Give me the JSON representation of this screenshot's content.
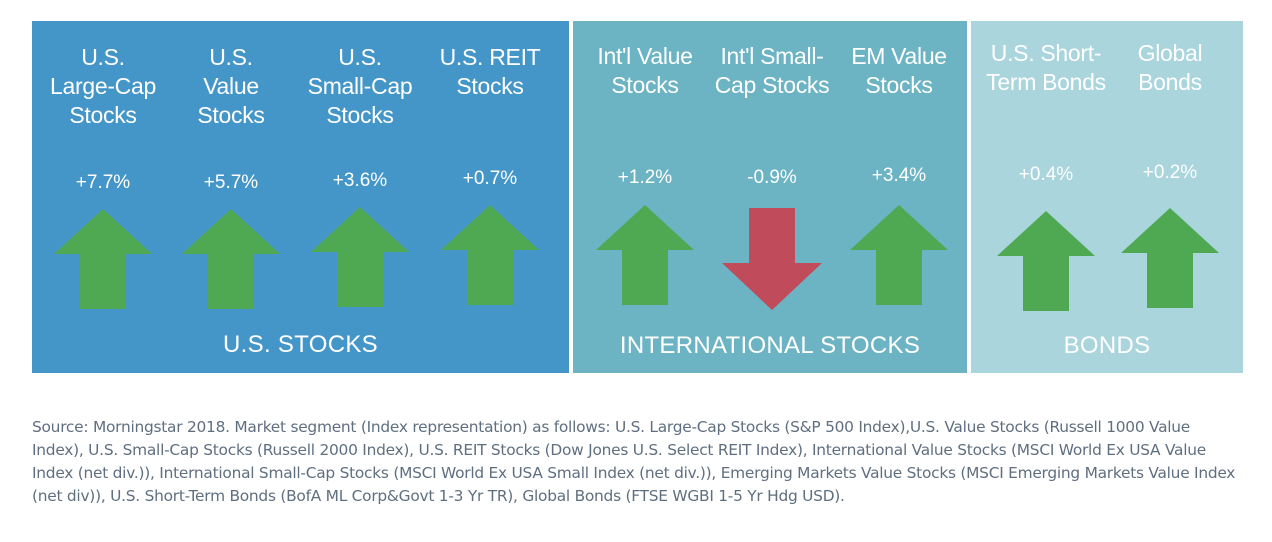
{
  "chart_data": {
    "type": "bar",
    "groups": [
      {
        "name": "U.S. STOCKS",
        "color": "#4596c8"
      },
      {
        "name": "INTERNATIONAL STOCKS",
        "color": "#6cb4c4"
      },
      {
        "name": "BONDS",
        "color": "#aad5dd"
      }
    ],
    "categories": [
      {
        "label": "U.S. Large-Cap Stocks",
        "lines": [
          "U.S.",
          "Large-Cap",
          "Stocks"
        ],
        "value_label": "+7.7%",
        "value": 7.7,
        "group": 0
      },
      {
        "label": "U.S. Value Stocks",
        "lines": [
          "U.S.",
          "Value",
          "Stocks"
        ],
        "value_label": "+5.7%",
        "value": 5.7,
        "group": 0
      },
      {
        "label": "U.S. Small-Cap Stocks",
        "lines": [
          "U.S.",
          "Small-Cap",
          "Stocks"
        ],
        "value_label": "+3.6%",
        "value": 3.6,
        "group": 0
      },
      {
        "label": "U.S. REIT Stocks",
        "lines": [
          "U.S. REIT",
          "Stocks"
        ],
        "value_label": "+0.7%",
        "value": 0.7,
        "group": 0
      },
      {
        "label": "Int'l Value Stocks",
        "lines": [
          "Int'l Value",
          "Stocks"
        ],
        "value_label": "+1.2%",
        "value": 1.2,
        "group": 1
      },
      {
        "label": "Int'l Small-Cap Stocks",
        "lines": [
          "Int'l Small-",
          "Cap Stocks"
        ],
        "value_label": "-0.9%",
        "value": -0.9,
        "group": 1
      },
      {
        "label": "EM Value Stocks",
        "lines": [
          "EM Value",
          "Stocks"
        ],
        "value_label": "+3.4%",
        "value": 3.4,
        "group": 1
      },
      {
        "label": "U.S. Short-Term Bonds",
        "lines": [
          "U.S. Short-",
          "Term Bonds"
        ],
        "value_label": "+0.4%",
        "value": 0.4,
        "group": 2
      },
      {
        "label": "Global Bonds",
        "lines": [
          "Global",
          "Bonds"
        ],
        "value_label": "+0.2%",
        "value": 0.2,
        "group": 2
      }
    ],
    "colors": {
      "up": "#4fa952",
      "down": "#bf4b5b"
    }
  },
  "source_note": "Source: Morningstar 2018. Market segment (Index representation) as follows: U.S. Large-Cap Stocks (S&P 500 Index),U.S. Value Stocks (Russell 1000 Value Index), U.S. Small-Cap Stocks (Russell 2000 Index), U.S. REIT Stocks (Dow Jones U.S. Select REIT Index), International Value Stocks (MSCI World Ex USA Value Index (net div.)), International Small-Cap Stocks (MSCI World Ex USA Small Index (net div.)), Emerging Markets Value Stocks (MSCI Emerging Markets Value Index (net div)), U.S. Short-Term Bonds (BofA ML Corp&Govt 1-3 Yr TR), Global Bonds (FTSE WGBI 1-5 Yr Hdg USD)."
}
